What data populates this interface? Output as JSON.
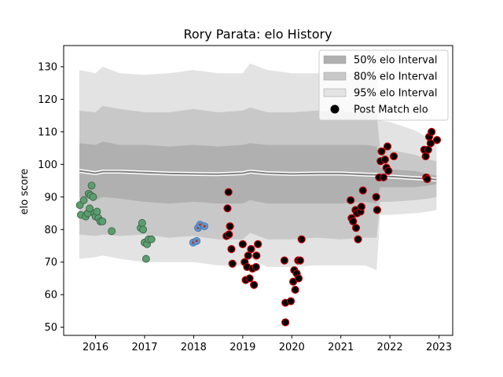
{
  "chart_data": {
    "type": "scatter",
    "title": "Rory Parata: elo History",
    "xlabel": "",
    "ylabel": "elo score",
    "xlim": [
      2015.35,
      2023.28
    ],
    "ylim": [
      47.5,
      136.5
    ],
    "xticks": [
      2016,
      2017,
      2018,
      2019,
      2020,
      2021,
      2022,
      2023
    ],
    "yticks": [
      50,
      60,
      70,
      80,
      90,
      100,
      110,
      120,
      130
    ],
    "legend_position": "top-right",
    "legend": [
      {
        "label": "50% elo Interval",
        "kind": "band",
        "color": "#b0b0b0"
      },
      {
        "label": "80% elo Interval",
        "kind": "band",
        "color": "#c8c8c8"
      },
      {
        "label": "95% elo Interval",
        "kind": "band",
        "color": "#e3e3e3"
      },
      {
        "label": "Post Match elo",
        "kind": "marker",
        "color": "#000000"
      }
    ],
    "colors": {
      "band95": "#e3e3e3",
      "band80": "#c8c8c8",
      "band50": "#b0b0b0",
      "mean_line": "#808080",
      "group_2016": "#5a9e6f",
      "group_2018": "#5b9bd5",
      "group_2019": "#c00000"
    },
    "bands": {
      "x": [
        2015.67,
        2016.0,
        2016.15,
        2016.5,
        2017.0,
        2017.5,
        2018.0,
        2018.5,
        2019.0,
        2019.15,
        2019.5,
        2020.0,
        2020.5,
        2021.0,
        2021.5,
        2021.73,
        2021.8,
        2022.0,
        2022.5,
        2022.8,
        2022.95
      ],
      "mean": [
        98,
        97.3,
        97.8,
        97.8,
        97.5,
        97.2,
        97.1,
        97.0,
        97.3,
        97.8,
        97.3,
        97.1,
        97.2,
        97.2,
        96.9,
        96.8,
        96.5,
        96.3,
        95.8,
        95.6,
        95.3
      ],
      "p50": [
        [
          90,
          106.5
        ],
        [
          89,
          106
        ],
        [
          90,
          107
        ],
        [
          89.5,
          106
        ],
        [
          88.5,
          106
        ],
        [
          88,
          105.5
        ],
        [
          88.5,
          106
        ],
        [
          88,
          105.5
        ],
        [
          88,
          106
        ],
        [
          89,
          106.5
        ],
        [
          88,
          106
        ],
        [
          88,
          106
        ],
        [
          88,
          106
        ],
        [
          88,
          106
        ],
        [
          88.5,
          106
        ],
        [
          88,
          105.5
        ],
        [
          93,
          99
        ],
        [
          93,
          98.5
        ],
        [
          93,
          98
        ],
        [
          93.5,
          97
        ],
        [
          94,
          96.5
        ]
      ],
      "p80": [
        [
          78.5,
          116.5
        ],
        [
          78,
          116
        ],
        [
          78.5,
          118
        ],
        [
          78,
          117
        ],
        [
          78.5,
          116
        ],
        [
          77.5,
          116
        ],
        [
          78,
          117
        ],
        [
          77,
          116
        ],
        [
          77,
          116.5
        ],
        [
          79,
          117.5
        ],
        [
          77,
          116
        ],
        [
          77,
          116
        ],
        [
          77.5,
          116.5
        ],
        [
          77,
          116
        ],
        [
          77.5,
          116
        ],
        [
          77.5,
          115.5
        ],
        [
          88.5,
          105
        ],
        [
          88.5,
          104.5
        ],
        [
          89,
          103
        ],
        [
          89.5,
          101.5
        ],
        [
          90,
          101
        ]
      ],
      "p95": [
        [
          71,
          129
        ],
        [
          71.5,
          128
        ],
        [
          72,
          130
        ],
        [
          71,
          128
        ],
        [
          70,
          127.5
        ],
        [
          70,
          128
        ],
        [
          70,
          129
        ],
        [
          69,
          128
        ],
        [
          69,
          128
        ],
        [
          71,
          131
        ],
        [
          68.5,
          129
        ],
        [
          68.5,
          128
        ],
        [
          69,
          128
        ],
        [
          69,
          128
        ],
        [
          69,
          128
        ],
        [
          67.5,
          127.5
        ],
        [
          84.5,
          113.5
        ],
        [
          84.5,
          113
        ],
        [
          85,
          110.5
        ],
        [
          85.5,
          108
        ],
        [
          86,
          107
        ]
      ]
    },
    "series": [
      {
        "group": "2016",
        "points": [
          [
            2015.68,
            87.5
          ],
          [
            2015.7,
            84.5
          ],
          [
            2015.76,
            89
          ],
          [
            2015.8,
            84
          ],
          [
            2015.84,
            85
          ],
          [
            2015.86,
            91
          ],
          [
            2015.88,
            86.5
          ],
          [
            2015.9,
            90.5
          ],
          [
            2015.92,
            93.5
          ],
          [
            2015.95,
            90
          ],
          [
            2015.98,
            85
          ],
          [
            2016.0,
            84
          ],
          [
            2016.03,
            85.5
          ],
          [
            2016.06,
            83.5
          ],
          [
            2016.1,
            82.5
          ],
          [
            2016.14,
            82.5
          ],
          [
            2016.33,
            79.5
          ],
          [
            2016.92,
            80.5
          ],
          [
            2016.95,
            82
          ],
          [
            2016.97,
            80
          ],
          [
            2017.0,
            76
          ],
          [
            2017.03,
            71
          ],
          [
            2017.05,
            75.5
          ],
          [
            2017.08,
            77
          ],
          [
            2017.14,
            77
          ]
        ]
      },
      {
        "group": "2018",
        "points": [
          [
            2017.99,
            76
          ],
          [
            2018.06,
            76.5
          ],
          [
            2018.09,
            80.5
          ],
          [
            2018.13,
            81.5
          ],
          [
            2018.22,
            81
          ]
        ]
      },
      {
        "group": "2019",
        "points": [
          [
            2018.67,
            78
          ],
          [
            2018.69,
            86.5
          ],
          [
            2018.71,
            91.5
          ],
          [
            2018.72,
            78.5
          ],
          [
            2018.74,
            81
          ],
          [
            2018.77,
            74
          ],
          [
            2018.79,
            69.5
          ],
          [
            2019.0,
            75.5
          ],
          [
            2019.04,
            70
          ],
          [
            2019.06,
            64.5
          ],
          [
            2019.09,
            68.5
          ],
          [
            2019.11,
            72
          ],
          [
            2019.14,
            65
          ],
          [
            2019.17,
            74
          ],
          [
            2019.2,
            68
          ],
          [
            2019.23,
            63
          ],
          [
            2019.27,
            68.5
          ],
          [
            2019.28,
            72
          ],
          [
            2019.31,
            75.5
          ],
          [
            2019.85,
            70.5
          ],
          [
            2019.87,
            57.5
          ],
          [
            2019.87,
            51.5
          ],
          [
            2019.98,
            58
          ],
          [
            2020.03,
            64
          ],
          [
            2020.05,
            67.5
          ],
          [
            2020.07,
            61.5
          ],
          [
            2020.1,
            66.5
          ],
          [
            2020.13,
            70.5
          ],
          [
            2020.14,
            65
          ],
          [
            2020.17,
            70.5
          ],
          [
            2020.2,
            77
          ],
          [
            2021.2,
            89
          ],
          [
            2021.22,
            83.5
          ],
          [
            2021.25,
            82.5
          ],
          [
            2021.3,
            86
          ],
          [
            2021.31,
            80.5
          ],
          [
            2021.33,
            85
          ],
          [
            2021.35,
            77
          ],
          [
            2021.4,
            85.5
          ],
          [
            2021.42,
            87
          ],
          [
            2021.45,
            92
          ],
          [
            2021.72,
            90
          ],
          [
            2021.74,
            86
          ],
          [
            2021.78,
            96
          ],
          [
            2021.81,
            101
          ],
          [
            2021.83,
            104
          ],
          [
            2021.87,
            96
          ],
          [
            2021.9,
            101.5
          ],
          [
            2021.93,
            99
          ],
          [
            2021.95,
            105.5
          ],
          [
            2021.97,
            98
          ],
          [
            2022.08,
            102.5
          ],
          [
            2022.7,
            104.5
          ],
          [
            2022.73,
            102.5
          ],
          [
            2022.74,
            96
          ],
          [
            2022.76,
            95.5
          ],
          [
            2022.78,
            104.5
          ],
          [
            2022.8,
            108.5
          ],
          [
            2022.83,
            106.5
          ],
          [
            2022.85,
            110
          ],
          [
            2022.96,
            107.5
          ]
        ]
      }
    ]
  }
}
